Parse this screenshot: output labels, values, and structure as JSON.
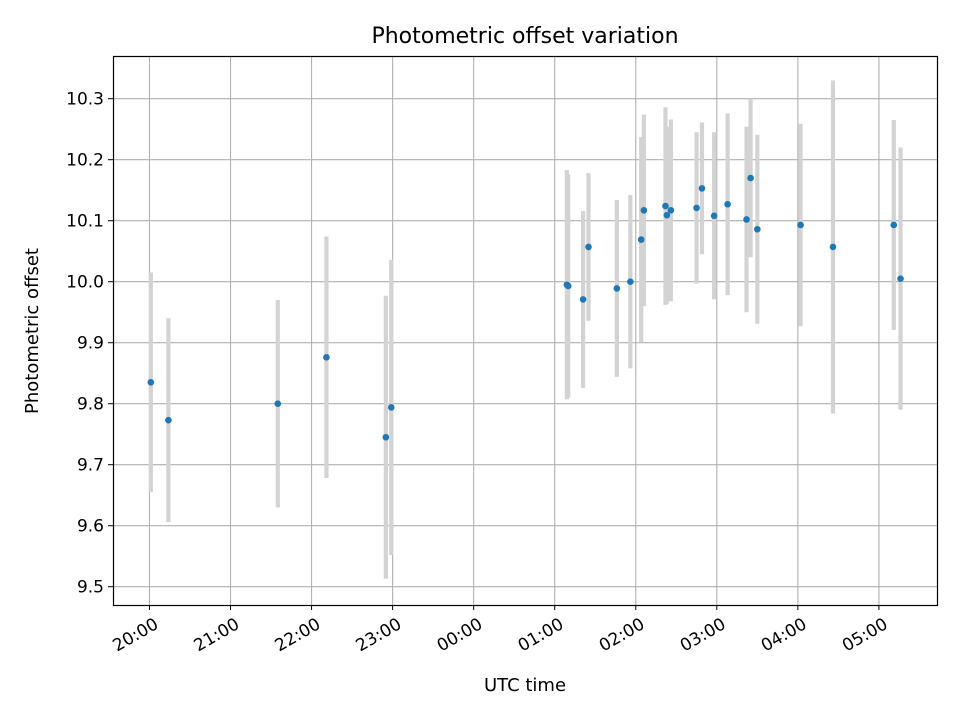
{
  "chart_data": {
    "type": "scatter",
    "title": "Photometric offset variation",
    "xlabel": "UTC time",
    "ylabel": "Photometric offset",
    "x_tick_labels": [
      "20:00",
      "21:00",
      "22:00",
      "23:00",
      "00:00",
      "01:00",
      "02:00",
      "03:00",
      "04:00",
      "05:00"
    ],
    "x_tick_hours": [
      20,
      21,
      22,
      23,
      24,
      25,
      26,
      27,
      28,
      29
    ],
    "y_tick_labels": [
      "9.5",
      "9.6",
      "9.7",
      "9.8",
      "9.9",
      "10.0",
      "10.1",
      "10.2",
      "10.3"
    ],
    "y_tick_values": [
      9.5,
      9.6,
      9.7,
      9.8,
      9.9,
      10.0,
      10.1,
      10.2,
      10.3
    ],
    "xlim": [
      "19:33",
      "05:43"
    ],
    "ylim": [
      9.47,
      10.37
    ],
    "grid": true,
    "legend": "none",
    "colors": {
      "points": "#1f77b4",
      "error_bars": "#d3d3d3",
      "grid": "#b0b0b0"
    },
    "points": [
      {
        "time": "20:01",
        "y": 9.835,
        "err": 0.18
      },
      {
        "time": "20:14",
        "y": 9.773,
        "err": 0.167
      },
      {
        "time": "21:35",
        "y": 9.8,
        "err": 0.17
      },
      {
        "time": "22:11",
        "y": 9.876,
        "err": 0.198
      },
      {
        "time": "22:55",
        "y": 9.745,
        "err": 0.232
      },
      {
        "time": "22:59",
        "y": 9.794,
        "err": 0.242
      },
      {
        "time": "01:09",
        "y": 9.995,
        "err": 0.188
      },
      {
        "time": "01:10",
        "y": 9.993,
        "err": 0.183
      },
      {
        "time": "01:21",
        "y": 9.971,
        "err": 0.145
      },
      {
        "time": "01:25",
        "y": 10.057,
        "err": 0.121
      },
      {
        "time": "01:46",
        "y": 9.989,
        "err": 0.145
      },
      {
        "time": "01:56",
        "y": 10.0,
        "err": 0.142
      },
      {
        "time": "02:04",
        "y": 10.069,
        "err": 0.168
      },
      {
        "time": "02:06",
        "y": 10.117,
        "err": 0.157
      },
      {
        "time": "02:22",
        "y": 10.124,
        "err": 0.162
      },
      {
        "time": "02:23",
        "y": 10.109,
        "err": 0.145
      },
      {
        "time": "02:26",
        "y": 10.117,
        "err": 0.149
      },
      {
        "time": "02:45",
        "y": 10.121,
        "err": 0.124
      },
      {
        "time": "02:49",
        "y": 10.153,
        "err": 0.108
      },
      {
        "time": "02:58",
        "y": 10.108,
        "err": 0.137
      },
      {
        "time": "03:08",
        "y": 10.127,
        "err": 0.149
      },
      {
        "time": "03:22",
        "y": 10.102,
        "err": 0.152
      },
      {
        "time": "03:25",
        "y": 10.17,
        "err": 0.13
      },
      {
        "time": "03:30",
        "y": 10.086,
        "err": 0.155
      },
      {
        "time": "04:02",
        "y": 10.093,
        "err": 0.166
      },
      {
        "time": "04:26",
        "y": 10.057,
        "err": 0.273
      },
      {
        "time": "05:11",
        "y": 10.093,
        "err": 0.172
      },
      {
        "time": "05:16",
        "y": 10.005,
        "err": 0.215
      }
    ]
  }
}
